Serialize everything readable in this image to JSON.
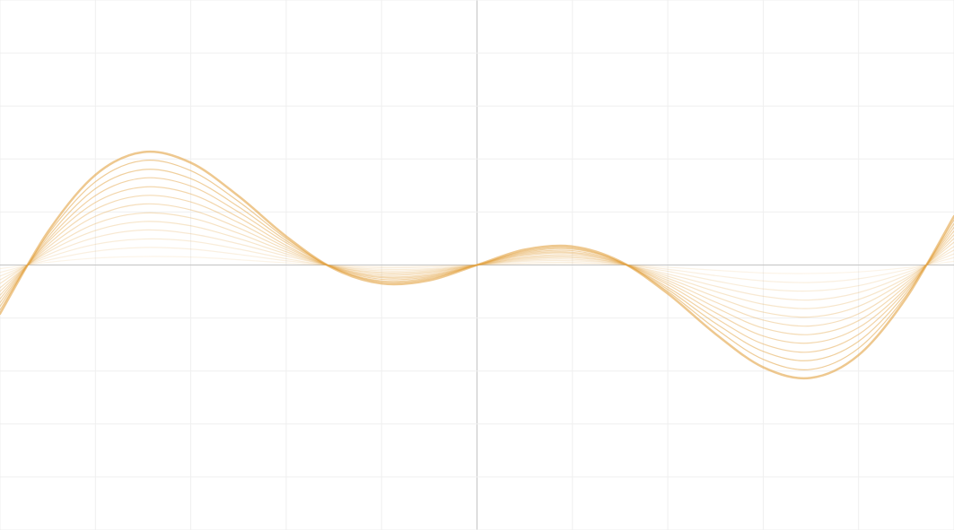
{
  "chart_data": {
    "type": "line",
    "xlim": [
      -5,
      5
    ],
    "ylim": [
      -5,
      5
    ],
    "xticks": [
      -5,
      -4,
      -3,
      -2,
      -1,
      0,
      1,
      2,
      3,
      4,
      5
    ],
    "yticks": [
      -5,
      -4,
      -3,
      -2,
      -1,
      0,
      1,
      2,
      3,
      4,
      5
    ],
    "grid": true,
    "x": [
      -5,
      -4.5,
      -4,
      -3.5,
      -3,
      -2.5,
      -2,
      -1.5,
      -1,
      -0.5,
      0,
      0.5,
      1,
      1.5,
      2,
      2.5,
      3,
      3.5,
      4,
      4.5,
      5
    ],
    "series": [
      {
        "color": "#e3a445",
        "opacity": 0.12,
        "values": [
          -0.07,
          0.05,
          0.13,
          0.16,
          0.15,
          0.1,
          0.04,
          -0.01,
          -0.03,
          -0.02,
          0,
          0.02,
          0.03,
          0.01,
          -0.04,
          -0.1,
          -0.15,
          -0.16,
          -0.13,
          -0.05,
          0.07
        ]
      },
      {
        "color": "#e3a445",
        "opacity": 0.16,
        "values": [
          -0.14,
          0.09,
          0.26,
          0.33,
          0.3,
          0.2,
          0.08,
          -0.01,
          -0.05,
          -0.04,
          0,
          0.04,
          0.05,
          0.01,
          -0.08,
          -0.2,
          -0.3,
          -0.33,
          -0.26,
          -0.09,
          0.14
        ]
      },
      {
        "color": "#e3a445",
        "opacity": 0.2,
        "values": [
          -0.21,
          0.14,
          0.39,
          0.49,
          0.45,
          0.3,
          0.12,
          -0.02,
          -0.08,
          -0.07,
          0,
          0.07,
          0.08,
          0.02,
          -0.12,
          -0.3,
          -0.45,
          -0.49,
          -0.39,
          -0.14,
          0.21
        ]
      },
      {
        "color": "#e3a445",
        "opacity": 0.24,
        "values": [
          -0.28,
          0.19,
          0.52,
          0.66,
          0.59,
          0.4,
          0.17,
          -0.02,
          -0.11,
          -0.09,
          0,
          0.09,
          0.11,
          0.02,
          -0.17,
          -0.4,
          -0.59,
          -0.66,
          -0.52,
          -0.19,
          0.28
        ]
      },
      {
        "color": "#e3a445",
        "opacity": 0.28,
        "values": [
          -0.35,
          0.24,
          0.65,
          0.82,
          0.74,
          0.5,
          0.21,
          -0.03,
          -0.14,
          -0.11,
          0,
          0.11,
          0.14,
          0.03,
          -0.21,
          -0.5,
          -0.74,
          -0.82,
          -0.65,
          -0.24,
          0.35
        ]
      },
      {
        "color": "#e3a445",
        "opacity": 0.32,
        "values": [
          -0.43,
          0.28,
          0.78,
          0.98,
          0.89,
          0.6,
          0.25,
          -0.03,
          -0.16,
          -0.13,
          0,
          0.13,
          0.16,
          0.03,
          -0.25,
          -0.6,
          -0.89,
          -0.98,
          -0.78,
          -0.28,
          0.43
        ]
      },
      {
        "color": "#e3a445",
        "opacity": 0.36,
        "values": [
          -0.5,
          0.33,
          0.92,
          1.15,
          1.04,
          0.7,
          0.29,
          -0.04,
          -0.19,
          -0.15,
          0,
          0.15,
          0.19,
          0.04,
          -0.29,
          -0.7,
          -1.04,
          -1.15,
          -0.92,
          -0.33,
          0.5
        ]
      },
      {
        "color": "#e3a445",
        "opacity": 0.4,
        "values": [
          -0.57,
          0.38,
          1.05,
          1.31,
          1.19,
          0.8,
          0.33,
          -0.04,
          -0.22,
          -0.18,
          0,
          0.18,
          0.22,
          0.04,
          -0.33,
          -0.8,
          -1.19,
          -1.31,
          -1.05,
          -0.38,
          0.57
        ]
      },
      {
        "color": "#e3a445",
        "opacity": 0.44,
        "values": [
          -0.64,
          0.43,
          1.18,
          1.47,
          1.34,
          0.9,
          0.37,
          -0.05,
          -0.24,
          -0.2,
          0,
          0.2,
          0.24,
          0.05,
          -0.37,
          -0.9,
          -1.34,
          -1.47,
          -1.18,
          -0.43,
          0.64
        ]
      },
      {
        "color": "#e3a445",
        "opacity": 0.48,
        "values": [
          -0.71,
          0.47,
          1.31,
          1.64,
          1.49,
          1.0,
          0.42,
          -0.05,
          -0.27,
          -0.22,
          0,
          0.22,
          0.27,
          0.05,
          -0.42,
          -1.0,
          -1.49,
          -1.64,
          -1.31,
          -0.47,
          0.71
        ]
      },
      {
        "color": "#e3a445",
        "opacity": 0.52,
        "values": [
          -0.78,
          0.52,
          1.44,
          1.8,
          1.63,
          1.1,
          0.46,
          -0.06,
          -0.3,
          -0.24,
          0,
          0.24,
          0.3,
          0.06,
          -0.46,
          -1.1,
          -1.63,
          -1.8,
          -1.44,
          -0.52,
          0.78
        ]
      },
      {
        "color": "#e3a445",
        "opacity": 0.56,
        "values": [
          -0.85,
          0.57,
          1.57,
          1.97,
          1.78,
          1.2,
          0.5,
          -0.06,
          -0.32,
          -0.26,
          0,
          0.26,
          0.32,
          0.06,
          -0.5,
          -1.2,
          -1.78,
          -1.97,
          -1.57,
          -0.57,
          0.85
        ]
      },
      {
        "color": "#e3a445",
        "opacity": 0.6,
        "values": [
          -0.92,
          0.62,
          1.7,
          2.13,
          1.93,
          1.3,
          0.54,
          -0.07,
          -0.35,
          -0.29,
          0,
          0.29,
          0.35,
          0.07,
          -0.54,
          -1.3,
          -1.93,
          -2.13,
          -1.7,
          -0.62,
          0.92
        ]
      }
    ]
  }
}
